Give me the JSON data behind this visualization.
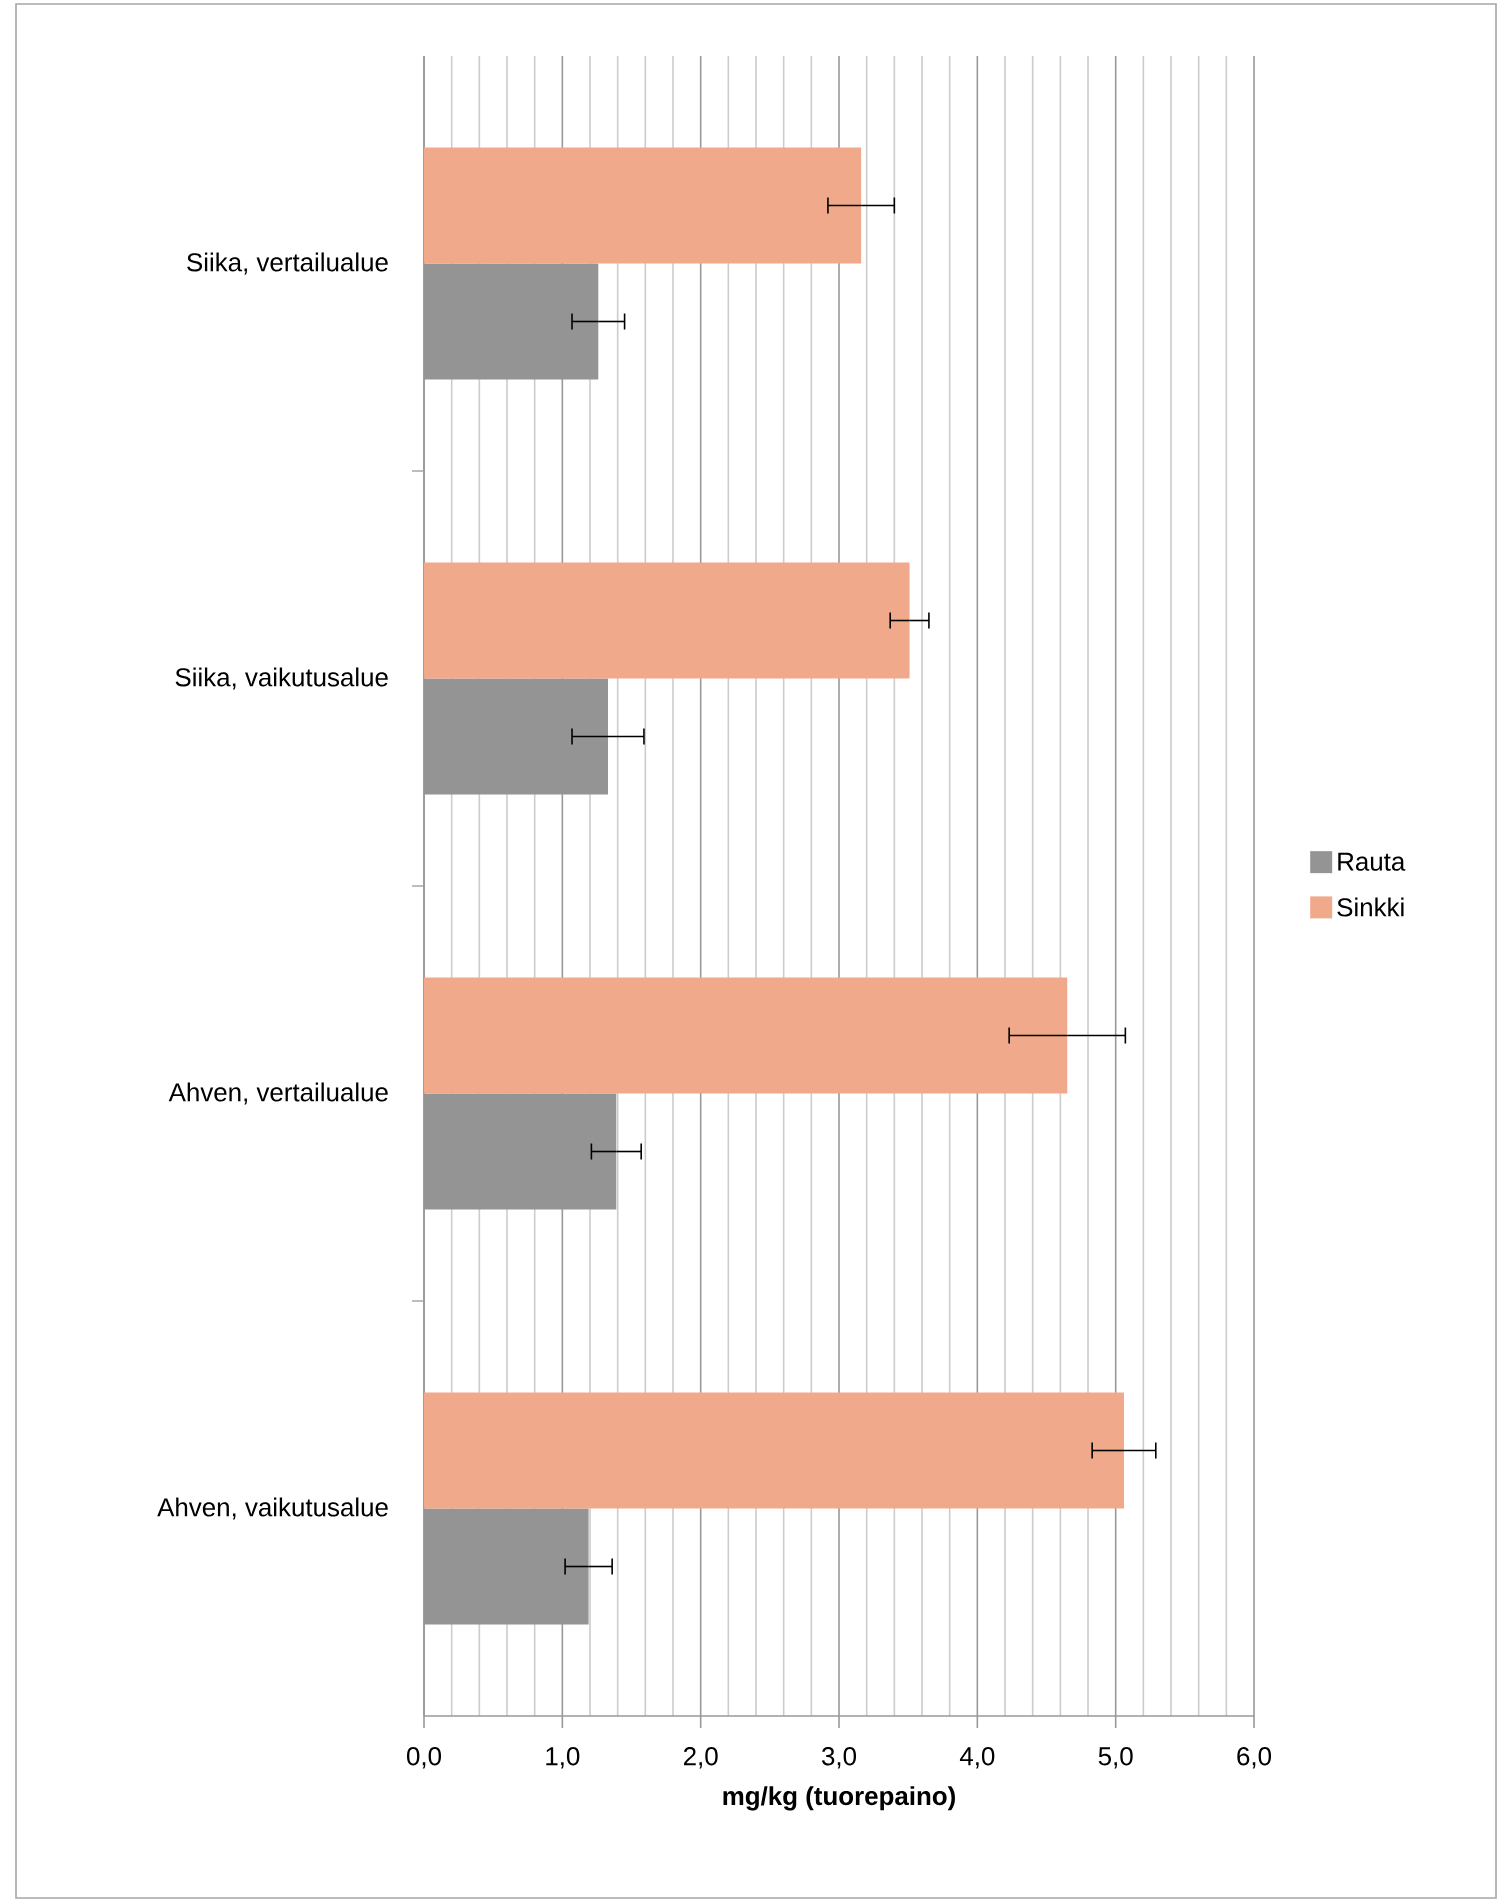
{
  "chart_data": {
    "type": "bar",
    "orientation": "horizontal",
    "categories": [
      "Siika, vertailualue",
      "Siika, vaikutusalue",
      "Ahven, vertailualue",
      "Ahven, vaikutusalue"
    ],
    "series": [
      {
        "name": "Rauta",
        "color": "#949494",
        "values": [
          1.26,
          1.33,
          1.39,
          1.19
        ],
        "errors": [
          0.19,
          0.26,
          0.18,
          0.17
        ]
      },
      {
        "name": "Sinkki",
        "color": "#f0a98a",
        "values": [
          3.16,
          3.51,
          4.65,
          5.06
        ],
        "errors": [
          0.24,
          0.14,
          0.42,
          0.23
        ]
      }
    ],
    "xlabel": "mg/kg (tuorepaino)",
    "xlim": [
      0,
      6
    ],
    "xticks": [
      {
        "value": 0,
        "label": "0,0"
      },
      {
        "value": 1,
        "label": "1,0"
      },
      {
        "value": 2,
        "label": "2,0"
      },
      {
        "value": 3,
        "label": "3,0"
      },
      {
        "value": 4,
        "label": "4,0"
      },
      {
        "value": 5,
        "label": "5,0"
      },
      {
        "value": 6,
        "label": "6,0"
      }
    ],
    "grid": "x",
    "legend": "right"
  }
}
